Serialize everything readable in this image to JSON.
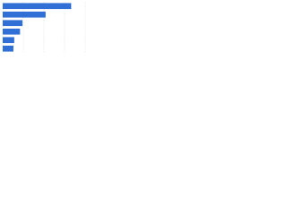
{
  "chart_data": {
    "type": "bar",
    "orientation": "horizontal",
    "categories": [
      null,
      null,
      null,
      null,
      null,
      null
    ],
    "values": [
      83,
      52,
      24,
      21,
      14,
      13
    ],
    "color": "#2f6fd6",
    "xlim": [
      0,
      100
    ],
    "xticks": [
      0,
      25,
      50,
      75,
      100
    ],
    "grid": true
  }
}
